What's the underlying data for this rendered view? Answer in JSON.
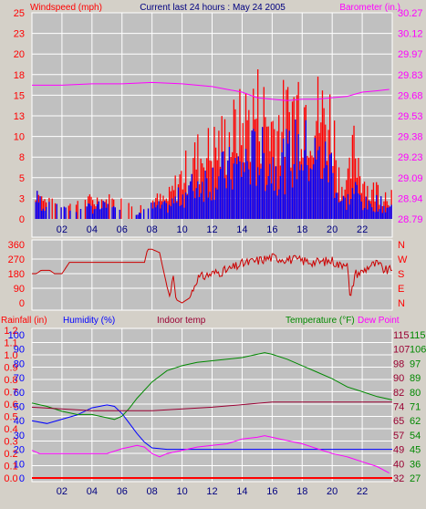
{
  "header": {
    "windspeed_label": "Windspeed (mph)",
    "title": "Current last 24 hours : May 24 2005",
    "barometer_label": "Barometer (in.)"
  },
  "lower_header": {
    "rainfall_label": "Rainfall (in)",
    "humidity_label": "Humidity (%)",
    "indoor_label": "Indoor temp",
    "temperature_label": "Temperature (°F)",
    "dewpoint_label": "Dew Point"
  },
  "colors": {
    "background": "#d4d0c8",
    "plot_bg": "#c0c0c0",
    "grid": "#ffffff",
    "wind_speed": "#ff0000",
    "wind_gust_blue": "#0000ff",
    "barometer": "#ff00ff",
    "direction": "#cc0000",
    "rainfall": "#ff0000",
    "humidity": "#0000ff",
    "indoor": "#990033",
    "temperature": "#008800",
    "dewpoint": "#ff00ff"
  },
  "chart_data": [
    {
      "type": "bar",
      "name": "Wind and barometer",
      "x_tick_labels": [
        "02",
        "04",
        "06",
        "08",
        "10",
        "12",
        "14",
        "16",
        "18",
        "20",
        "22"
      ],
      "x_range_hours": [
        0,
        24
      ],
      "left_axis": {
        "label": "Windspeed (mph)",
        "ticks": [
          "0",
          "3",
          "5",
          "8",
          "10",
          "13",
          "15",
          "18",
          "20",
          "23",
          "25"
        ],
        "ylim": [
          0,
          25
        ]
      },
      "right_axis": {
        "label": "Barometer (in.)",
        "ticks": [
          "28.79",
          "28.94",
          "29.09",
          "29.23",
          "29.38",
          "29.53",
          "29.68",
          "29.83",
          "29.97",
          "30.12",
          "30.27"
        ],
        "ylim": [
          28.79,
          30.27
        ]
      },
      "gust_profile": {
        "x": [
          0,
          0.3,
          1,
          2,
          3,
          4,
          5,
          6,
          7,
          8,
          9,
          10,
          11,
          12,
          13,
          14,
          15,
          16,
          17,
          17.8,
          18.5,
          19,
          20,
          20.5,
          21,
          21.5,
          22,
          22.5,
          23,
          23.5
        ],
        "y": [
          0,
          4,
          2.5,
          2,
          2,
          3,
          3,
          2.5,
          1.5,
          3,
          3,
          7,
          10,
          11,
          13,
          15,
          18,
          15,
          16,
          19.5,
          18,
          17,
          16,
          6,
          5,
          12,
          7,
          4,
          5,
          4
        ]
      },
      "speed_profile": {
        "x": [
          0,
          0.3,
          1,
          2,
          3,
          4,
          5,
          6,
          7,
          8,
          9,
          10,
          11,
          12,
          13,
          14,
          15,
          16,
          17,
          17.8,
          18.5,
          19,
          20,
          20.5,
          21,
          21.5,
          22,
          22.5,
          23,
          23.5
        ],
        "y": [
          0,
          3.5,
          2,
          1.5,
          1,
          2,
          2,
          1,
          0.5,
          2,
          2,
          4,
          6,
          7,
          8,
          9,
          11,
          9,
          10,
          12,
          11,
          10,
          9,
          3,
          3,
          5,
          3,
          2,
          3,
          2
        ]
      },
      "barometer": {
        "x": [
          0,
          2,
          4,
          6,
          8,
          10,
          12,
          14,
          15,
          16,
          17,
          18,
          19,
          20,
          21,
          22,
          23,
          23.8
        ],
        "y": [
          29.75,
          29.75,
          29.76,
          29.76,
          29.77,
          29.76,
          29.74,
          29.7,
          29.66,
          29.65,
          29.64,
          29.65,
          29.65,
          29.66,
          29.67,
          29.7,
          29.71,
          29.72
        ]
      }
    },
    {
      "type": "line",
      "name": "Wind direction",
      "left_axis": {
        "ticks": [
          "0",
          "90",
          "180",
          "270",
          "360"
        ],
        "ylim": [
          0,
          360
        ]
      },
      "right_axis": {
        "ticks": [
          "N",
          "E",
          "S",
          "W",
          "N"
        ]
      },
      "series": {
        "x": [
          0,
          0.3,
          0.6,
          1.2,
          1.5,
          2,
          2.5,
          3,
          4,
          5,
          6,
          7,
          7.5,
          7.7,
          8,
          8.5,
          9,
          9.2,
          9.4,
          9.6,
          10,
          10.5,
          11,
          12,
          13,
          14,
          15,
          16,
          17,
          18,
          19,
          20,
          20.5,
          21,
          21.2,
          21.5,
          22,
          22.5,
          23,
          23.5
        ],
        "y": [
          180,
          180,
          200,
          200,
          180,
          180,
          250,
          250,
          250,
          250,
          250,
          250,
          250,
          330,
          330,
          310,
          100,
          30,
          180,
          20,
          0,
          30,
          150,
          180,
          200,
          240,
          260,
          280,
          270,
          260,
          250,
          260,
          230,
          260,
          0,
          180,
          190,
          230,
          240,
          200
        ]
      }
    },
    {
      "type": "line",
      "name": "Humidity, temperature and rain",
      "x_tick_labels": [
        "02",
        "04",
        "06",
        "08",
        "10",
        "12",
        "14",
        "16",
        "18",
        "20",
        "22"
      ],
      "axes": {
        "rainfall": {
          "label": "Rainfall (in)",
          "ticks": [
            "0.0",
            "0.1",
            "0.2",
            "0.3",
            "0.4",
            "0.5",
            "0.6",
            "0.7",
            "0.8",
            "0.9",
            "1.0",
            "1.1",
            "1.2"
          ],
          "ylim": [
            0,
            1.2
          ]
        },
        "humidity": {
          "label": "Humidity (%)",
          "ticks": [
            "0",
            "10",
            "20",
            "30",
            "40",
            "50",
            "60",
            "70",
            "80",
            "90",
            "100"
          ],
          "ylim": [
            0,
            100
          ]
        },
        "indoor_temp": {
          "label": "Indoor temp",
          "ticks": [
            "32",
            "40",
            "49",
            "57",
            "65",
            "74",
            "82",
            "90",
            "98",
            "107",
            "115"
          ],
          "ylim": [
            32,
            115
          ]
        },
        "temperature": {
          "label": "Temperature (°F)",
          "ticks": [
            "27",
            "36",
            "45",
            "54",
            "62",
            "71",
            "80",
            "89",
            "97",
            "106",
            "115"
          ],
          "ylim": [
            27,
            115
          ]
        }
      },
      "series": [
        {
          "name": "Humidity (%)",
          "x": [
            0,
            1,
            2,
            3,
            4,
            4.5,
            5,
            5.5,
            6,
            6.5,
            7,
            7.5,
            8,
            9,
            12,
            16,
            20,
            24
          ],
          "y": [
            40,
            38,
            41,
            44,
            49,
            50,
            51,
            50,
            45,
            38,
            31,
            25,
            21,
            20,
            20,
            20,
            20,
            20
          ]
        },
        {
          "name": "Temperature (°F)",
          "x": [
            0,
            1,
            2,
            3,
            4,
            5,
            5.5,
            6,
            6.5,
            7,
            8,
            9,
            10,
            11,
            12,
            14,
            15,
            15.5,
            16,
            17,
            18,
            19,
            20,
            21,
            22,
            23,
            24
          ],
          "y": [
            73,
            71,
            68,
            66,
            66,
            64,
            63,
            65,
            70,
            76,
            86,
            93,
            96,
            98,
            99,
            101,
            103,
            104,
            103,
            100,
            96,
            92,
            88,
            83,
            80,
            77,
            75
          ]
        },
        {
          "name": "Indoor temp",
          "x": [
            0,
            4,
            8,
            12,
            16,
            20,
            24
          ],
          "y": [
            73,
            71,
            71,
            73,
            76,
            76,
            76
          ]
        },
        {
          "name": "Dew Point",
          "x": [
            0,
            0.5,
            1,
            2,
            4,
            5,
            6,
            6.5,
            7,
            7.5,
            8,
            8.5,
            9,
            10,
            11,
            12,
            13,
            14,
            15,
            15.5,
            16,
            17,
            18,
            19,
            20,
            21,
            22,
            23,
            23.8
          ],
          "y": [
            44,
            42,
            42,
            42,
            42,
            42,
            45,
            46,
            47,
            46,
            42,
            40,
            42,
            44,
            46,
            47,
            48,
            51,
            52,
            53,
            52,
            50,
            48,
            45,
            42,
            40,
            37,
            34,
            30
          ]
        },
        {
          "name": "Rainfall (in)",
          "x": [
            0,
            24
          ],
          "y": [
            0,
            0
          ]
        }
      ]
    }
  ]
}
